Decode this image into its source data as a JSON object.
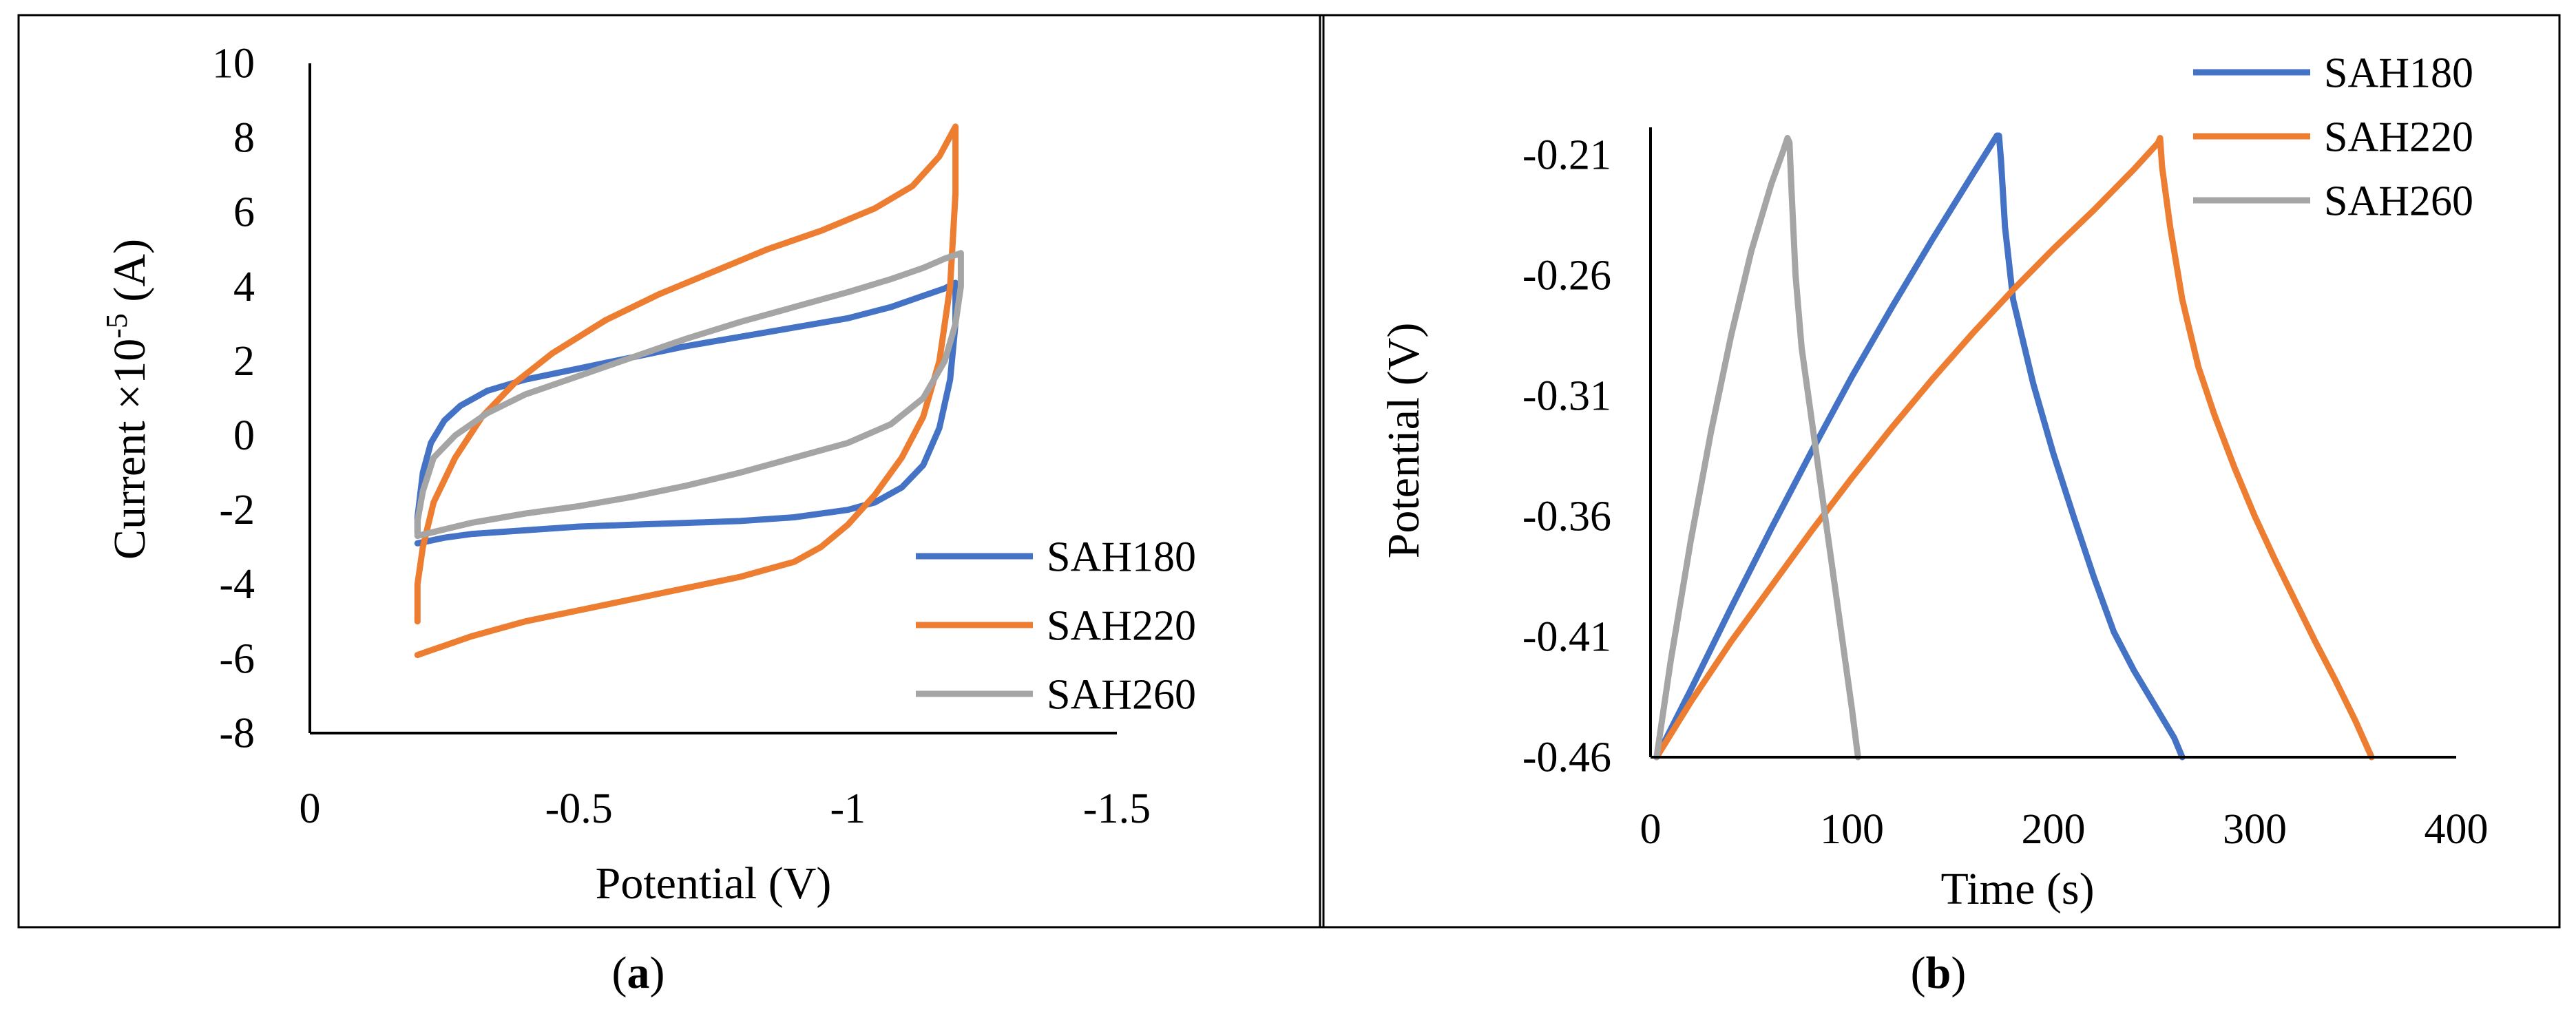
{
  "panels": [
    {
      "caption_letter": "a",
      "chart_data": {
        "type": "line",
        "title": "",
        "xlabel": "Potential (V)",
        "ylabel_prefix": "Current ×10",
        "ylabel_sup": "-5",
        "ylabel_suffix": " (A)",
        "xlim": [
          0,
          -1.5
        ],
        "ylim": [
          -8,
          10
        ],
        "x_ticks": [
          0,
          -0.5,
          -1,
          -1.5
        ],
        "x_tick_labels": [
          "0",
          "-0.5",
          "-1",
          "-1.5"
        ],
        "y_ticks": [
          -8,
          -6,
          -4,
          -2,
          0,
          2,
          4,
          6,
          8,
          10
        ],
        "y_tick_labels": [
          "-8",
          "-6",
          "-4",
          "-2",
          "0",
          "2",
          "4",
          "6",
          "8",
          "10"
        ],
        "grid": false,
        "legend_position": "bottom-right",
        "series": [
          {
            "name": "SAH180",
            "color": "#4472C4",
            "points": [
              [
                -0.2,
                -2.6
              ],
              [
                -0.2,
                -2.2
              ],
              [
                -0.21,
                -1.0
              ],
              [
                -0.225,
                -0.2
              ],
              [
                -0.25,
                0.4
              ],
              [
                -0.28,
                0.8
              ],
              [
                -0.33,
                1.2
              ],
              [
                -0.4,
                1.5
              ],
              [
                -0.5,
                1.8
              ],
              [
                -0.6,
                2.1
              ],
              [
                -0.7,
                2.4
              ],
              [
                -0.8,
                2.65
              ],
              [
                -0.9,
                2.9
              ],
              [
                -1.0,
                3.15
              ],
              [
                -1.08,
                3.45
              ],
              [
                -1.14,
                3.75
              ],
              [
                -1.18,
                3.95
              ],
              [
                -1.2,
                4.1
              ],
              [
                -1.2,
                3.0
              ],
              [
                -1.19,
                1.5
              ],
              [
                -1.17,
                0.2
              ],
              [
                -1.14,
                -0.8
              ],
              [
                -1.1,
                -1.4
              ],
              [
                -1.05,
                -1.8
              ],
              [
                -1.0,
                -2.0
              ],
              [
                -0.9,
                -2.2
              ],
              [
                -0.8,
                -2.3
              ],
              [
                -0.7,
                -2.35
              ],
              [
                -0.6,
                -2.4
              ],
              [
                -0.5,
                -2.45
              ],
              [
                -0.4,
                -2.55
              ],
              [
                -0.3,
                -2.65
              ],
              [
                -0.25,
                -2.75
              ],
              [
                -0.2,
                -2.9
              ]
            ]
          },
          {
            "name": "SAH220",
            "color": "#ED7D31",
            "points": [
              [
                -0.2,
                -5.0
              ],
              [
                -0.2,
                -4.0
              ],
              [
                -0.21,
                -3.0
              ],
              [
                -0.23,
                -1.8
              ],
              [
                -0.27,
                -0.6
              ],
              [
                -0.32,
                0.5
              ],
              [
                -0.38,
                1.4
              ],
              [
                -0.45,
                2.2
              ],
              [
                -0.55,
                3.1
              ],
              [
                -0.65,
                3.8
              ],
              [
                -0.75,
                4.4
              ],
              [
                -0.85,
                5.0
              ],
              [
                -0.95,
                5.5
              ],
              [
                -1.05,
                6.1
              ],
              [
                -1.12,
                6.7
              ],
              [
                -1.17,
                7.5
              ],
              [
                -1.2,
                8.3
              ],
              [
                -1.2,
                6.5
              ],
              [
                -1.19,
                4.0
              ],
              [
                -1.17,
                2.0
              ],
              [
                -1.14,
                0.5
              ],
              [
                -1.1,
                -0.6
              ],
              [
                -1.05,
                -1.6
              ],
              [
                -1.0,
                -2.4
              ],
              [
                -0.95,
                -3.0
              ],
              [
                -0.9,
                -3.4
              ],
              [
                -0.8,
                -3.8
              ],
              [
                -0.7,
                -4.1
              ],
              [
                -0.6,
                -4.4
              ],
              [
                -0.5,
                -4.7
              ],
              [
                -0.4,
                -5.0
              ],
              [
                -0.3,
                -5.4
              ],
              [
                -0.2,
                -5.9
              ]
            ]
          },
          {
            "name": "SAH260",
            "color": "#A5A5A5",
            "points": [
              [
                -0.2,
                -2.7
              ],
              [
                -0.2,
                -2.3
              ],
              [
                -0.21,
                -1.5
              ],
              [
                -0.23,
                -0.6
              ],
              [
                -0.27,
                0.0
              ],
              [
                -0.33,
                0.6
              ],
              [
                -0.4,
                1.1
              ],
              [
                -0.5,
                1.6
              ],
              [
                -0.6,
                2.1
              ],
              [
                -0.7,
                2.6
              ],
              [
                -0.8,
                3.05
              ],
              [
                -0.9,
                3.45
              ],
              [
                -1.0,
                3.85
              ],
              [
                -1.08,
                4.2
              ],
              [
                -1.14,
                4.5
              ],
              [
                -1.18,
                4.75
              ],
              [
                -1.21,
                4.9
              ],
              [
                -1.21,
                4.0
              ],
              [
                -1.2,
                3.0
              ],
              [
                -1.18,
                2.0
              ],
              [
                -1.14,
                1.0
              ],
              [
                -1.08,
                0.3
              ],
              [
                -1.0,
                -0.2
              ],
              [
                -0.9,
                -0.6
              ],
              [
                -0.8,
                -1.0
              ],
              [
                -0.7,
                -1.35
              ],
              [
                -0.6,
                -1.65
              ],
              [
                -0.5,
                -1.9
              ],
              [
                -0.4,
                -2.1
              ],
              [
                -0.3,
                -2.35
              ],
              [
                -0.2,
                -2.7
              ]
            ]
          }
        ]
      }
    },
    {
      "caption_letter": "b",
      "chart_data": {
        "type": "line",
        "title": "",
        "xlabel": "Time (s)",
        "ylabel": "Potential (V)",
        "xlim": [
          0,
          400
        ],
        "ylim": [
          -0.46,
          -0.2
        ],
        "x_ticks": [
          0,
          100,
          200,
          300,
          400
        ],
        "x_tick_labels": [
          "0",
          "100",
          "200",
          "300",
          "400"
        ],
        "y_ticks": [
          -0.46,
          -0.41,
          -0.36,
          -0.31,
          -0.26,
          -0.21
        ],
        "y_tick_labels": [
          "-0.46",
          "-0.41",
          "-0.36",
          "-0.31",
          "-0.26",
          "-0.21"
        ],
        "grid": false,
        "legend_position": "top-right",
        "series": [
          {
            "name": "SAH180",
            "color": "#4472C4",
            "points": [
              [
                3,
                -0.46
              ],
              [
                20,
                -0.432
              ],
              [
                40,
                -0.398
              ],
              [
                60,
                -0.365
              ],
              [
                80,
                -0.333
              ],
              [
                100,
                -0.302
              ],
              [
                120,
                -0.273
              ],
              [
                140,
                -0.245
              ],
              [
                160,
                -0.218
              ],
              [
                172,
                -0.202
              ],
              [
                173,
                -0.202
              ],
              [
                174,
                -0.212
              ],
              [
                176,
                -0.24
              ],
              [
                180,
                -0.27
              ],
              [
                190,
                -0.305
              ],
              [
                200,
                -0.334
              ],
              [
                210,
                -0.36
              ],
              [
                220,
                -0.385
              ],
              [
                230,
                -0.408
              ],
              [
                240,
                -0.424
              ],
              [
                250,
                -0.438
              ],
              [
                260,
                -0.452
              ],
              [
                264,
                -0.46
              ]
            ]
          },
          {
            "name": "SAH220",
            "color": "#ED7D31",
            "points": [
              [
                3,
                -0.46
              ],
              [
                20,
                -0.437
              ],
              [
                40,
                -0.412
              ],
              [
                60,
                -0.389
              ],
              [
                80,
                -0.366
              ],
              [
                100,
                -0.344
              ],
              [
                120,
                -0.323
              ],
              [
                140,
                -0.303
              ],
              [
                160,
                -0.284
              ],
              [
                180,
                -0.266
              ],
              [
                200,
                -0.249
              ],
              [
                220,
                -0.233
              ],
              [
                240,
                -0.216
              ],
              [
                252,
                -0.205
              ],
              [
                253,
                -0.203
              ],
              [
                254,
                -0.215
              ],
              [
                258,
                -0.24
              ],
              [
                264,
                -0.27
              ],
              [
                272,
                -0.298
              ],
              [
                280,
                -0.318
              ],
              [
                290,
                -0.34
              ],
              [
                300,
                -0.36
              ],
              [
                310,
                -0.378
              ],
              [
                320,
                -0.395
              ],
              [
                330,
                -0.412
              ],
              [
                340,
                -0.428
              ],
              [
                350,
                -0.445
              ],
              [
                358,
                -0.46
              ]
            ]
          },
          {
            "name": "SAH260",
            "color": "#A5A5A5",
            "points": [
              [
                3,
                -0.46
              ],
              [
                10,
                -0.42
              ],
              [
                20,
                -0.37
              ],
              [
                30,
                -0.325
              ],
              [
                40,
                -0.285
              ],
              [
                50,
                -0.25
              ],
              [
                60,
                -0.222
              ],
              [
                66,
                -0.208
              ],
              [
                68,
                -0.203
              ],
              [
                69,
                -0.205
              ],
              [
                70,
                -0.225
              ],
              [
                72,
                -0.26
              ],
              [
                75,
                -0.29
              ],
              [
                80,
                -0.32
              ],
              [
                85,
                -0.35
              ],
              [
                90,
                -0.38
              ],
              [
                95,
                -0.41
              ],
              [
                100,
                -0.44
              ],
              [
                103,
                -0.46
              ]
            ]
          }
        ]
      }
    }
  ]
}
